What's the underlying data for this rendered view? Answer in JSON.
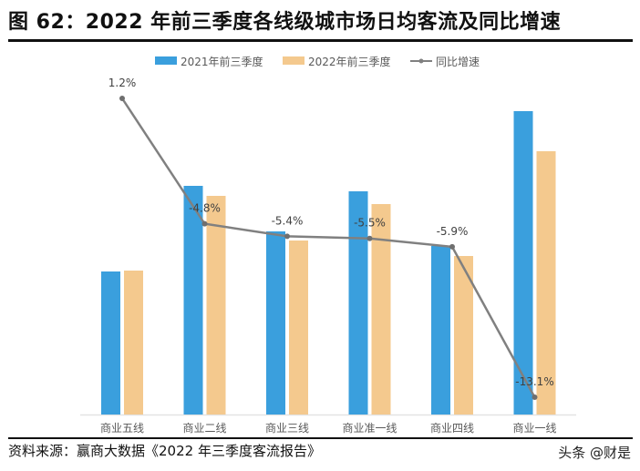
{
  "title": "图 62：2022 年前三季度各线级城市场日均客流及同比增速",
  "source": "资料来源：赢商大数据《2022 年三季度客流报告》",
  "watermark": "头条 @财是",
  "chart_data": {
    "type": "bar",
    "title": "",
    "xlabel": "",
    "ylabel": "",
    "categories": [
      "商业五线",
      "商业二线",
      "商业三线",
      "商业准一线",
      "商业四线",
      "商业一线"
    ],
    "series": [
      {
        "name": "2021年前三季度",
        "type": "bar",
        "color": "#3A9FDD",
        "values": [
          157,
          251,
          201,
          245,
          185,
          333
        ]
      },
      {
        "name": "2022年前三季度",
        "type": "bar",
        "color": "#F4C98E",
        "values": [
          158,
          240,
          191,
          231,
          174,
          289
        ]
      },
      {
        "name": "同比增速",
        "type": "line",
        "color": "#808080",
        "values": [
          1.2,
          -4.8,
          -5.4,
          -5.5,
          -5.9,
          -13.1
        ],
        "labels": [
          "1.2%",
          "-4.8%",
          "-5.4%",
          "-5.5%",
          "-5.9%",
          "-13.1%"
        ]
      }
    ],
    "y_axis_visible": false,
    "grid": false,
    "legend_position": "top-center"
  }
}
